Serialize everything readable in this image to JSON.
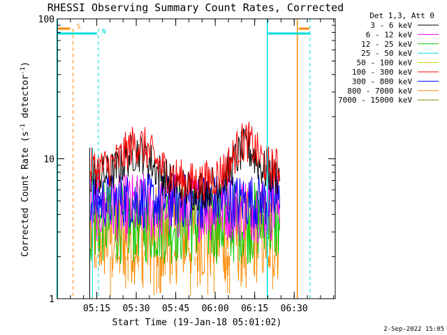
{
  "chart_data": {
    "type": "line",
    "title": "RHESSI Observing Summary Count Rates, Corrected",
    "xlabel": "Start Time (19-Jan-18 05:01:02)",
    "ylabel_main": "Corrected Count Rate (s",
    "ylabel_sup1": "-1",
    "ylabel_mid": " detector",
    "ylabel_sup2": "-1",
    "ylabel_end": ")",
    "yscale": "log",
    "ylim": [
      1,
      100
    ],
    "xlim_minutes": [
      5.0,
      6.76
    ],
    "x_tick_labels": [
      "05:15",
      "05:30",
      "05:45",
      "06:00",
      "06:15",
      "06:30"
    ],
    "x_tick_values_hours": [
      5.25,
      5.5,
      5.75,
      6.0,
      6.25,
      6.5
    ],
    "y_tick_labels": [
      "1",
      "10",
      "100"
    ],
    "y_tick_values": [
      1,
      10,
      100
    ],
    "data_interval_hours": [
      5.21,
      6.41
    ],
    "legend": {
      "header": "Det 1,3, Att 0",
      "entries": [
        {
          "label": "3 - 6 keV",
          "color": "#000000"
        },
        {
          "label": "6 - 12 keV",
          "color": "#ff00ff"
        },
        {
          "label": "12 - 25 keV",
          "color": "#00cc00"
        },
        {
          "label": "25 - 50 keV",
          "color": "#00dddd"
        },
        {
          "label": "50 - 100 keV",
          "color": "#cccc00"
        },
        {
          "label": "100 - 300 keV",
          "color": "#ff0000"
        },
        {
          "label": "300 - 800 keV",
          "color": "#0000ff"
        },
        {
          "label": "800 - 7000 keV",
          "color": "#ff8800"
        },
        {
          "label": "7000 - 15000 keV",
          "color": "#888800"
        }
      ]
    },
    "series_levels": [
      {
        "name": "100 - 300 keV",
        "color": "#ff0000",
        "base": 8.5,
        "spread": 0.15
      },
      {
        "name": "3 - 6 keV",
        "color": "#000000",
        "base": 7.5,
        "spread": 0.15
      },
      {
        "name": "300 - 800 keV",
        "color": "#0000ff",
        "base": 5.0,
        "spread": 0.2
      },
      {
        "name": "6 - 12 keV",
        "color": "#ff00ff",
        "base": 4.5,
        "spread": 0.25
      },
      {
        "name": "12 - 25 keV",
        "color": "#00cc00",
        "base": 3.5,
        "spread": 0.3
      },
      {
        "name": "800 - 7000 keV",
        "color": "#ff8800",
        "base": 2.8,
        "spread": 0.35
      }
    ],
    "flags": [
      {
        "label": "S",
        "color": "#ff8800",
        "value_hours": 5.1,
        "style": "dashed"
      },
      {
        "label": "N",
        "color": "#00dddd",
        "value_hours": 5.26,
        "style": "dashed"
      }
    ],
    "right_markers": [
      {
        "color": "#00dddd",
        "value_hours": 6.33
      },
      {
        "color": "#ff8800",
        "value_hours": 6.52
      },
      {
        "color": "#00dddd",
        "value_hours": 6.6
      }
    ]
  },
  "footer": {
    "date_stamp": "2-Sep-2022 15:05"
  }
}
